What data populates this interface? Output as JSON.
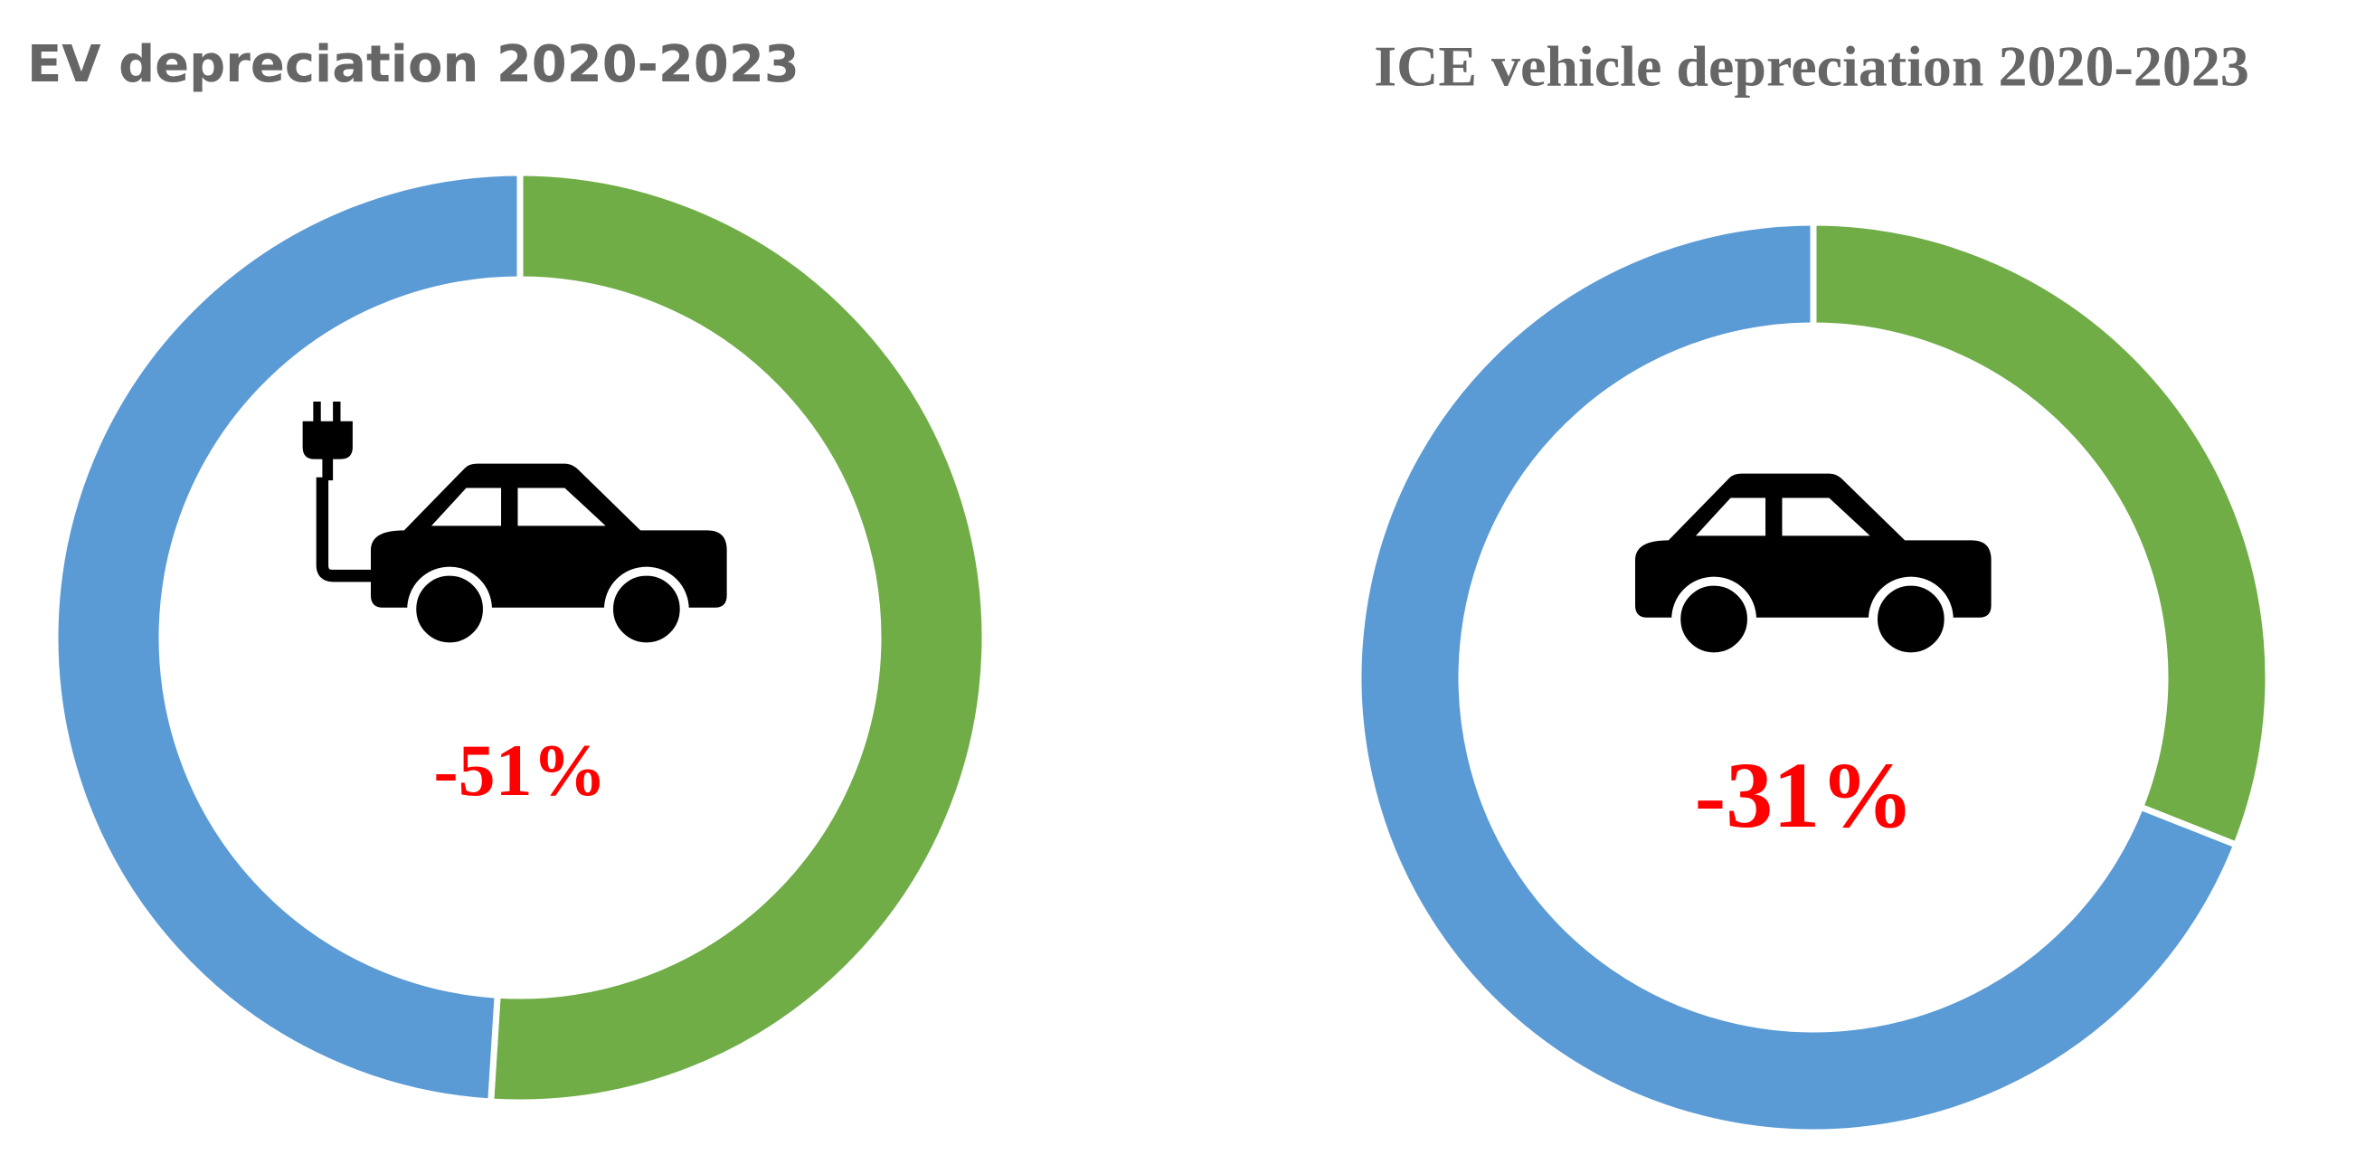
{
  "chart_data": [
    {
      "type": "donut",
      "title": "EV depreciation 2020-2023",
      "categories": [
        null,
        null
      ],
      "values": [
        51,
        49
      ],
      "colors": [
        "#70ad47",
        "#5b9bd5"
      ],
      "center_label": "-51%"
    },
    {
      "type": "donut",
      "title": "ICE vehicle depreciation 2020-2023",
      "categories": [
        null,
        null
      ],
      "values": [
        31,
        69
      ],
      "colors": [
        "#70ad47",
        "#5b9bd5"
      ],
      "center_label": "-31%"
    }
  ]
}
